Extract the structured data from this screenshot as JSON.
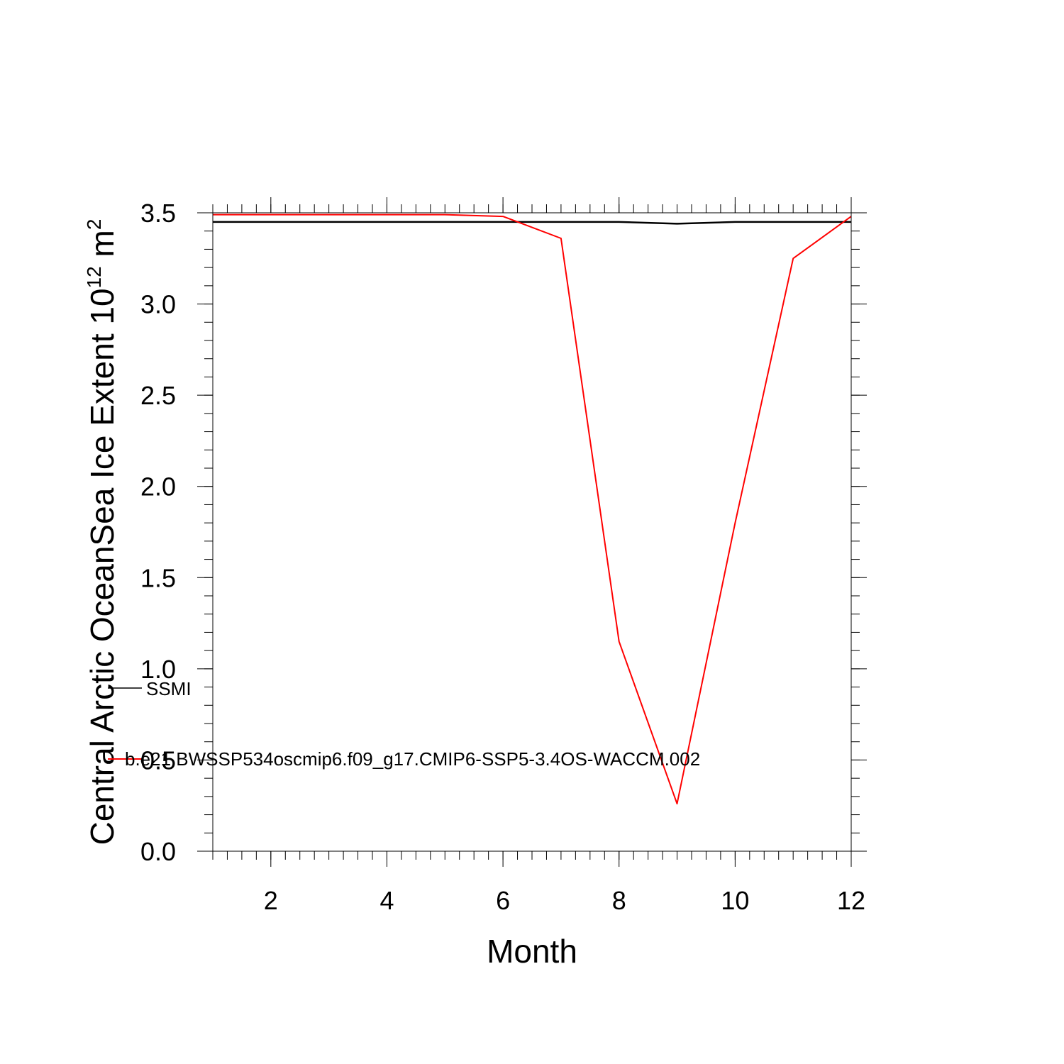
{
  "chart_data": {
    "type": "line",
    "xlabel": "Month",
    "ylabel": {
      "prefix": "Central Arctic OceanSea Ice Extent 10",
      "exp1": "12",
      "mid": " m",
      "exp2": "2"
    },
    "xlim": [
      1,
      12
    ],
    "ylim": [
      0,
      3.5
    ],
    "x_ticks": [
      2,
      4,
      6,
      8,
      10,
      12
    ],
    "x_tick_labels": [
      "2",
      "4",
      "6",
      "8",
      "10",
      "12"
    ],
    "y_ticks": [
      0,
      0.5,
      1,
      1.5,
      2,
      2.5,
      3,
      3.5
    ],
    "y_tick_labels": [
      "0.0",
      "0.5",
      "1.0",
      "1.5",
      "2.0",
      "2.5",
      "3.0",
      "3.5"
    ],
    "x": [
      1,
      2,
      3,
      4,
      5,
      6,
      7,
      8,
      9,
      10,
      11,
      12
    ],
    "series": [
      {
        "name": "SSMI",
        "color": "#000000",
        "values": [
          3.45,
          3.45,
          3.45,
          3.45,
          3.45,
          3.45,
          3.45,
          3.45,
          3.44,
          3.45,
          3.45,
          3.45
        ]
      },
      {
        "name": "b.e21.BWSSP534oscmip6.f09_g17.CMIP6-SSP5-3.4OS-WACCM.002",
        "color": "#ff0000",
        "values": [
          3.49,
          3.49,
          3.49,
          3.49,
          3.49,
          3.48,
          3.36,
          1.15,
          0.26,
          1.8,
          3.25,
          3.48
        ]
      }
    ],
    "grid": false,
    "legend": "inside-left"
  }
}
